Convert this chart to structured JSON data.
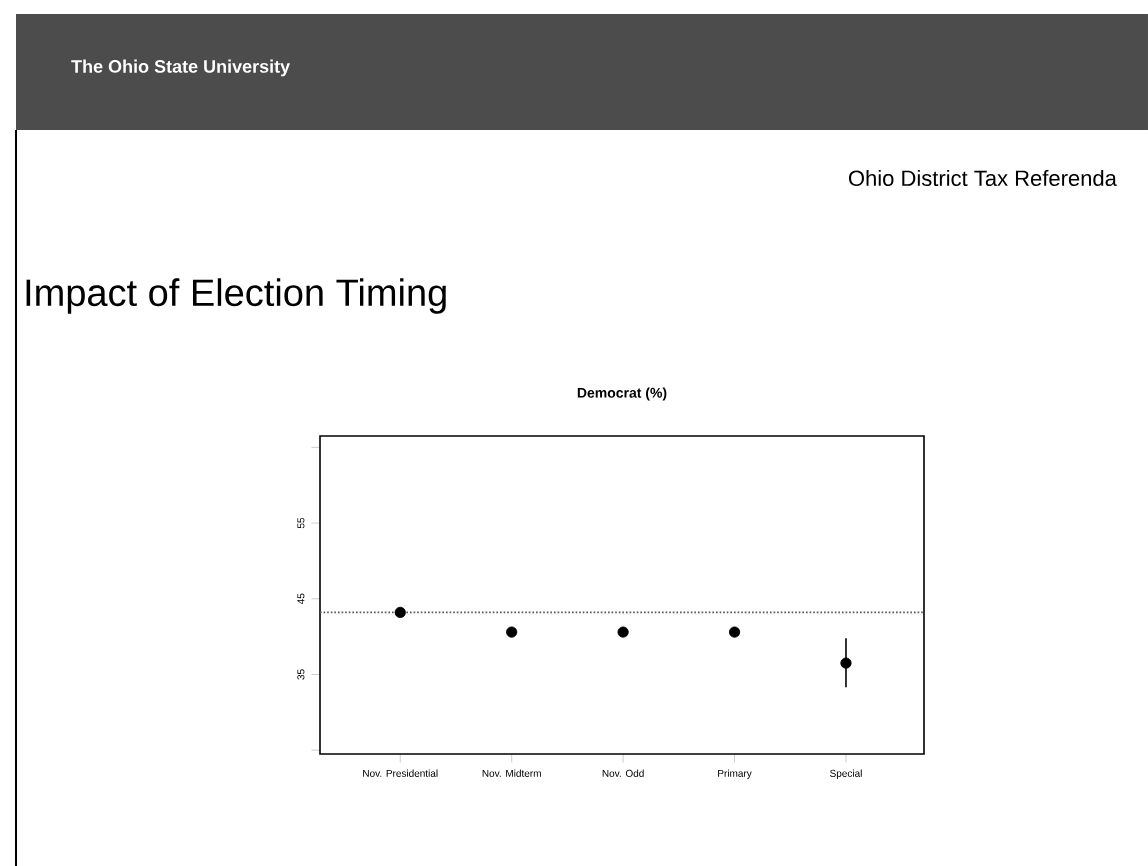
{
  "chart_data": {
    "type": "scatter",
    "title": "Democrat (%)",
    "subtitle": "Impact of Election Timing",
    "annotations": [
      "The Ohio State University",
      "Ohio District Tax Referenda"
    ],
    "categories": [
      "Nov. Presidential",
      "Nov. Midterm",
      "Nov. Odd",
      "Primary",
      "Special"
    ],
    "values": [
      43.2,
      40.6,
      40.6,
      40.6,
      36.5
    ],
    "errors": [
      null,
      null,
      null,
      null,
      [
        33.3,
        39.8
      ]
    ],
    "color": "#000000",
    "marker": "circle",
    "ylim": [
      24.5,
      66.5
    ],
    "yticks": [
      {
        "value": 25,
        "label": null
      },
      35,
      45,
      55,
      {
        "value": 65,
        "label": null
      }
    ],
    "ref_lines": [
      {
        "axis": "y",
        "value": 43.2,
        "color": "#555555",
        "line_style": "dotted"
      }
    ]
  }
}
